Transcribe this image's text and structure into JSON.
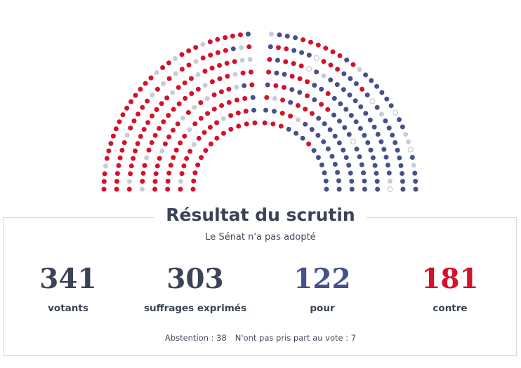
{
  "header": {
    "title": "Résultat du scrutin",
    "subtitle": "Le Sénat n'a pas adopté"
  },
  "stats": {
    "votants": {
      "value": "341",
      "label": "votants"
    },
    "exprimes": {
      "value": "303",
      "label": "suffrages exprimés"
    },
    "pour": {
      "value": "122",
      "label": "pour"
    },
    "contre": {
      "value": "181",
      "label": "contre"
    }
  },
  "footer": {
    "abstention": "Abstention : 38",
    "non_votants": "N'ont pas pris part au vote : 7"
  },
  "colors": {
    "text": "#3b4357",
    "pour": "#48508b",
    "contre": "#d4122b",
    "abstention": "#c9ccd4",
    "non_votant_stroke": "#b9bcc4"
  },
  "chart_data": {
    "type": "hemicycle",
    "seats": [
      {
        "name": "pour",
        "count": 122,
        "color": "#48508b"
      },
      {
        "name": "contre",
        "count": 181,
        "color": "#d4122b"
      },
      {
        "name": "abstention",
        "count": 38,
        "color": "#c9ccd4"
      },
      {
        "name": "non votant",
        "count": 7,
        "color": "#ffffff"
      }
    ]
  }
}
